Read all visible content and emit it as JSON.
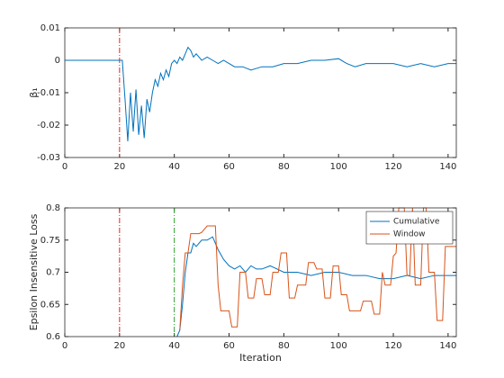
{
  "chart_data": [
    {
      "type": "line",
      "ylabel": "β₁",
      "xlim": [
        0,
        143
      ],
      "xticks": [
        0,
        20,
        40,
        60,
        80,
        100,
        120,
        140
      ],
      "ylim": [
        -0.03,
        0.01
      ],
      "yticks": [
        -0.03,
        -0.02,
        -0.01,
        0,
        0.01
      ],
      "vlines": [
        {
          "x": 20,
          "color": "#d62728",
          "style": "dashdot"
        }
      ],
      "series": [
        {
          "color": "#0072bd",
          "x": [
            0,
            21,
            22,
            23,
            24,
            25,
            26,
            27,
            28,
            29,
            30,
            31,
            32,
            33,
            34,
            35,
            36,
            37,
            38,
            39,
            40,
            41,
            42,
            43,
            44,
            45,
            46,
            47,
            48,
            50,
            52,
            54,
            56,
            58,
            60,
            62,
            65,
            68,
            72,
            76,
            80,
            85,
            90,
            95,
            100,
            103,
            106,
            110,
            115,
            120,
            125,
            130,
            135,
            140,
            143
          ],
          "values": [
            0,
            0,
            -0.012,
            -0.025,
            -0.01,
            -0.022,
            -0.009,
            -0.023,
            -0.014,
            -0.024,
            -0.012,
            -0.016,
            -0.01,
            -0.006,
            -0.008,
            -0.004,
            -0.006,
            -0.003,
            -0.005,
            -0.001,
            0,
            -0.001,
            0.001,
            0,
            0.002,
            0.004,
            0.003,
            0.001,
            0.002,
            0,
            0.001,
            0,
            -0.001,
            0,
            -0.001,
            -0.002,
            -0.002,
            -0.003,
            -0.002,
            -0.002,
            -0.001,
            -0.001,
            0,
            0,
            0.0005,
            -0.001,
            -0.002,
            -0.001,
            -0.001,
            -0.001,
            -0.002,
            -0.001,
            -0.002,
            -0.001,
            -0.001
          ]
        }
      ]
    },
    {
      "type": "line",
      "xlabel": "Iteration",
      "ylabel": "Epsilon Insensitive Loss",
      "xlim": [
        0,
        143
      ],
      "xticks": [
        0,
        20,
        40,
        60,
        80,
        100,
        120,
        140
      ],
      "ylim": [
        0.6,
        0.8
      ],
      "yticks": [
        0.6,
        0.65,
        0.7,
        0.75,
        0.8
      ],
      "legend": "northeast",
      "vlines": [
        {
          "x": 20,
          "color": "#d62728",
          "style": "dashdot"
        },
        {
          "x": 40,
          "color": "#2ca02c",
          "style": "dashdot"
        }
      ],
      "series": [
        {
          "name": "Cumulative",
          "color": "#0072bd",
          "x": [
            41,
            42,
            43,
            44,
            45,
            46,
            47,
            48,
            49,
            50,
            52,
            54,
            56,
            58,
            60,
            62,
            64,
            66,
            68,
            70,
            72,
            75,
            80,
            85,
            90,
            95,
            100,
            105,
            110,
            115,
            120,
            125,
            130,
            135,
            140,
            143
          ],
          "values": [
            0.6,
            0.61,
            0.65,
            0.7,
            0.73,
            0.73,
            0.745,
            0.74,
            0.745,
            0.75,
            0.75,
            0.755,
            0.735,
            0.72,
            0.71,
            0.705,
            0.71,
            0.7,
            0.71,
            0.705,
            0.705,
            0.71,
            0.7,
            0.7,
            0.695,
            0.7,
            0.7,
            0.695,
            0.695,
            0.69,
            0.69,
            0.695,
            0.69,
            0.695,
            0.695,
            0.695
          ]
        },
        {
          "name": "Window",
          "color": "#d95319",
          "x": [
            42,
            43,
            44,
            45,
            46,
            49,
            50,
            52,
            55,
            56,
            57,
            60,
            61,
            63,
            64,
            66,
            67,
            69,
            70,
            72,
            73,
            75,
            76,
            78,
            79,
            81,
            82,
            84,
            85,
            88,
            89,
            91,
            92,
            94,
            95,
            97,
            98,
            100,
            101,
            103,
            104,
            108,
            109,
            112,
            113,
            115,
            116,
            117,
            119,
            120,
            121,
            122,
            124,
            125,
            126,
            127,
            128,
            130,
            131,
            132,
            133,
            135,
            136,
            138,
            139,
            143
          ],
          "values": [
            0.61,
            0.68,
            0.73,
            0.73,
            0.76,
            0.76,
            0.762,
            0.772,
            0.772,
            0.68,
            0.64,
            0.64,
            0.615,
            0.615,
            0.7,
            0.7,
            0.66,
            0.66,
            0.69,
            0.69,
            0.665,
            0.665,
            0.7,
            0.7,
            0.73,
            0.73,
            0.66,
            0.66,
            0.68,
            0.68,
            0.715,
            0.715,
            0.705,
            0.705,
            0.66,
            0.66,
            0.71,
            0.71,
            0.665,
            0.665,
            0.64,
            0.64,
            0.655,
            0.655,
            0.635,
            0.635,
            0.7,
            0.68,
            0.68,
            0.725,
            0.73,
            0.8,
            0.8,
            0.695,
            0.695,
            0.8,
            0.68,
            0.68,
            0.8,
            0.8,
            0.7,
            0.7,
            0.625,
            0.625,
            0.74,
            0.74
          ]
        }
      ]
    }
  ]
}
